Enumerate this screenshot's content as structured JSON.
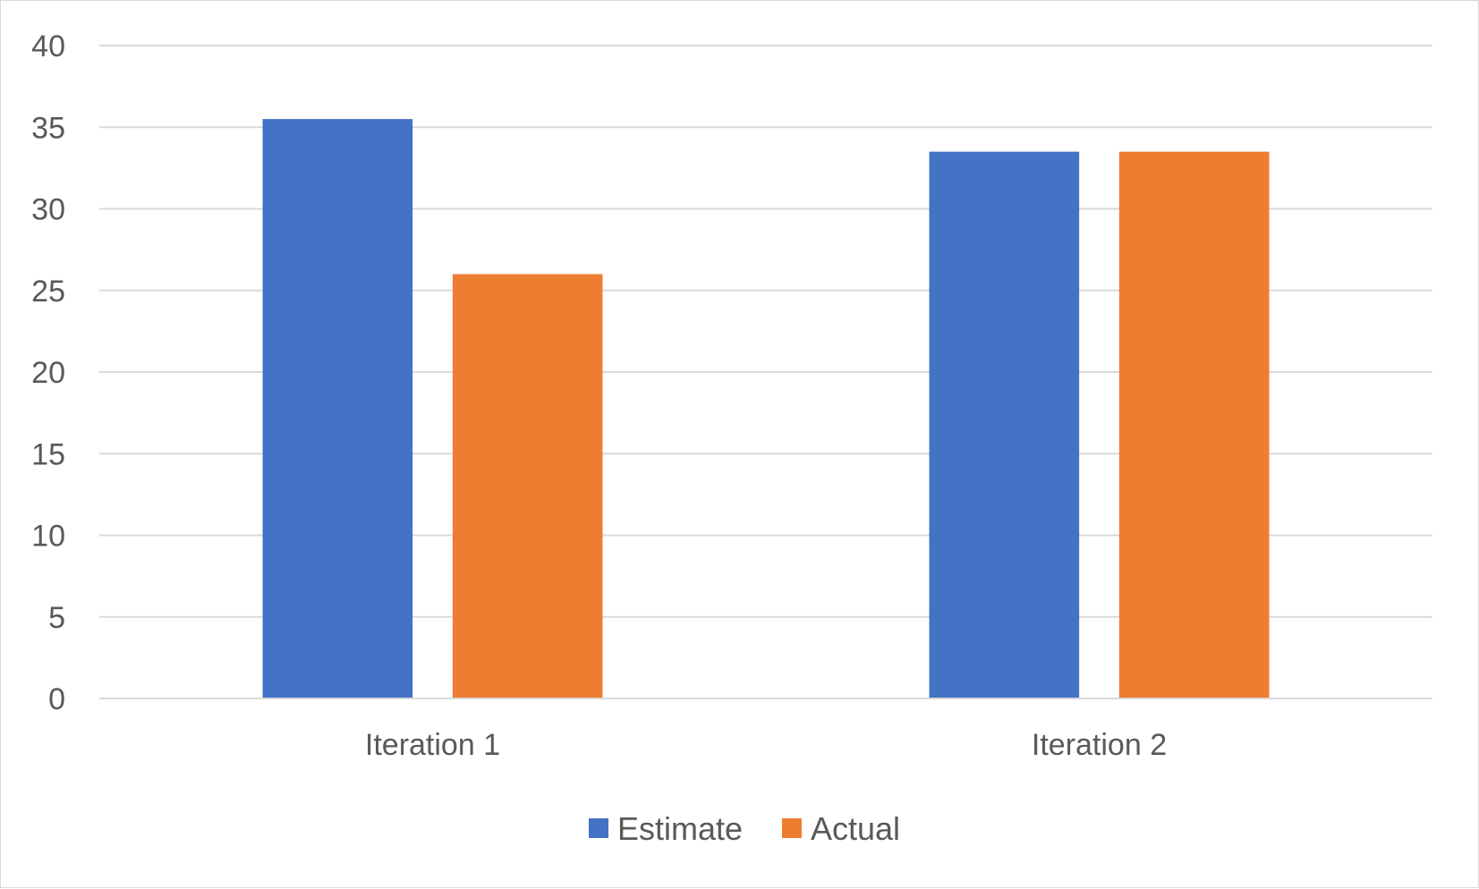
{
  "chart_data": {
    "type": "bar",
    "title": "",
    "xlabel": "",
    "ylabel": "",
    "categories": [
      "Iteration 1",
      "Iteration 2"
    ],
    "series": [
      {
        "name": "Estimate",
        "values": [
          35.5,
          33.5
        ],
        "color": "#4472C4"
      },
      {
        "name": "Actual",
        "values": [
          26,
          33.5
        ],
        "color": "#ED7D31"
      }
    ],
    "ylim": [
      0,
      40
    ],
    "yticks": [
      0,
      5,
      10,
      15,
      20,
      25,
      30,
      35,
      40
    ],
    "grid": true,
    "legend_position": "bottom",
    "colors": {
      "gridline": "#d9d9d9",
      "text": "#595959"
    }
  }
}
